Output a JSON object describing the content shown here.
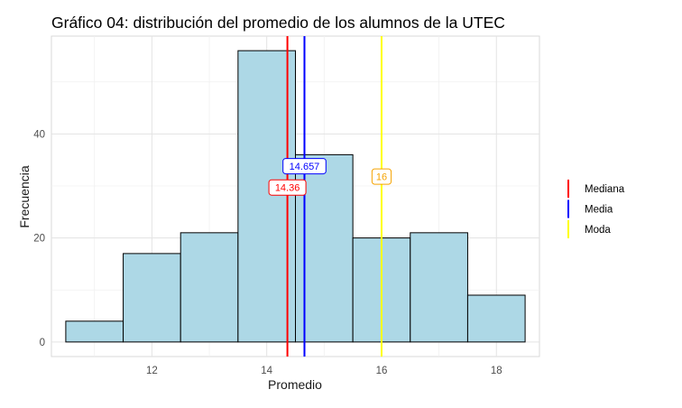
{
  "chart_data": {
    "type": "bar",
    "title": "Gráfico 04: distribución del promedio de los alumnos de la UTEC",
    "xlabel": "Promedio",
    "ylabel": "Frecuencia",
    "xlim": [
      10.25,
      18.75
    ],
    "ylim": [
      -2.8,
      58.8
    ],
    "x_ticks": [
      12,
      14,
      16,
      18
    ],
    "y_ticks": [
      0,
      20,
      40
    ],
    "grid": true,
    "bins": [
      {
        "start": 10.5,
        "end": 11.5,
        "value": 4
      },
      {
        "start": 11.5,
        "end": 12.5,
        "value": 17
      },
      {
        "start": 12.5,
        "end": 13.5,
        "value": 21
      },
      {
        "start": 13.5,
        "end": 14.5,
        "value": 56
      },
      {
        "start": 14.5,
        "end": 15.5,
        "value": 36
      },
      {
        "start": 15.5,
        "end": 16.5,
        "value": 20
      },
      {
        "start": 16.5,
        "end": 17.5,
        "value": 21
      },
      {
        "start": 17.5,
        "end": 18.5,
        "value": 9
      }
    ],
    "bar_fill": "#add8e6",
    "bar_stroke": "#000000",
    "reference_lines": [
      {
        "name": "Mediana",
        "value": 14.36,
        "label": "14.36",
        "color": "#ff0000",
        "label_y": 29.7
      },
      {
        "name": "Media",
        "value": 14.657,
        "label": "14.657",
        "color": "#0000ff",
        "label_y": 33.8
      },
      {
        "name": "Moda",
        "value": 16,
        "label": "16",
        "color": "#ffff00",
        "label_color": "#f5a300",
        "label_y": 31.8
      }
    ],
    "legend_position": "right"
  }
}
